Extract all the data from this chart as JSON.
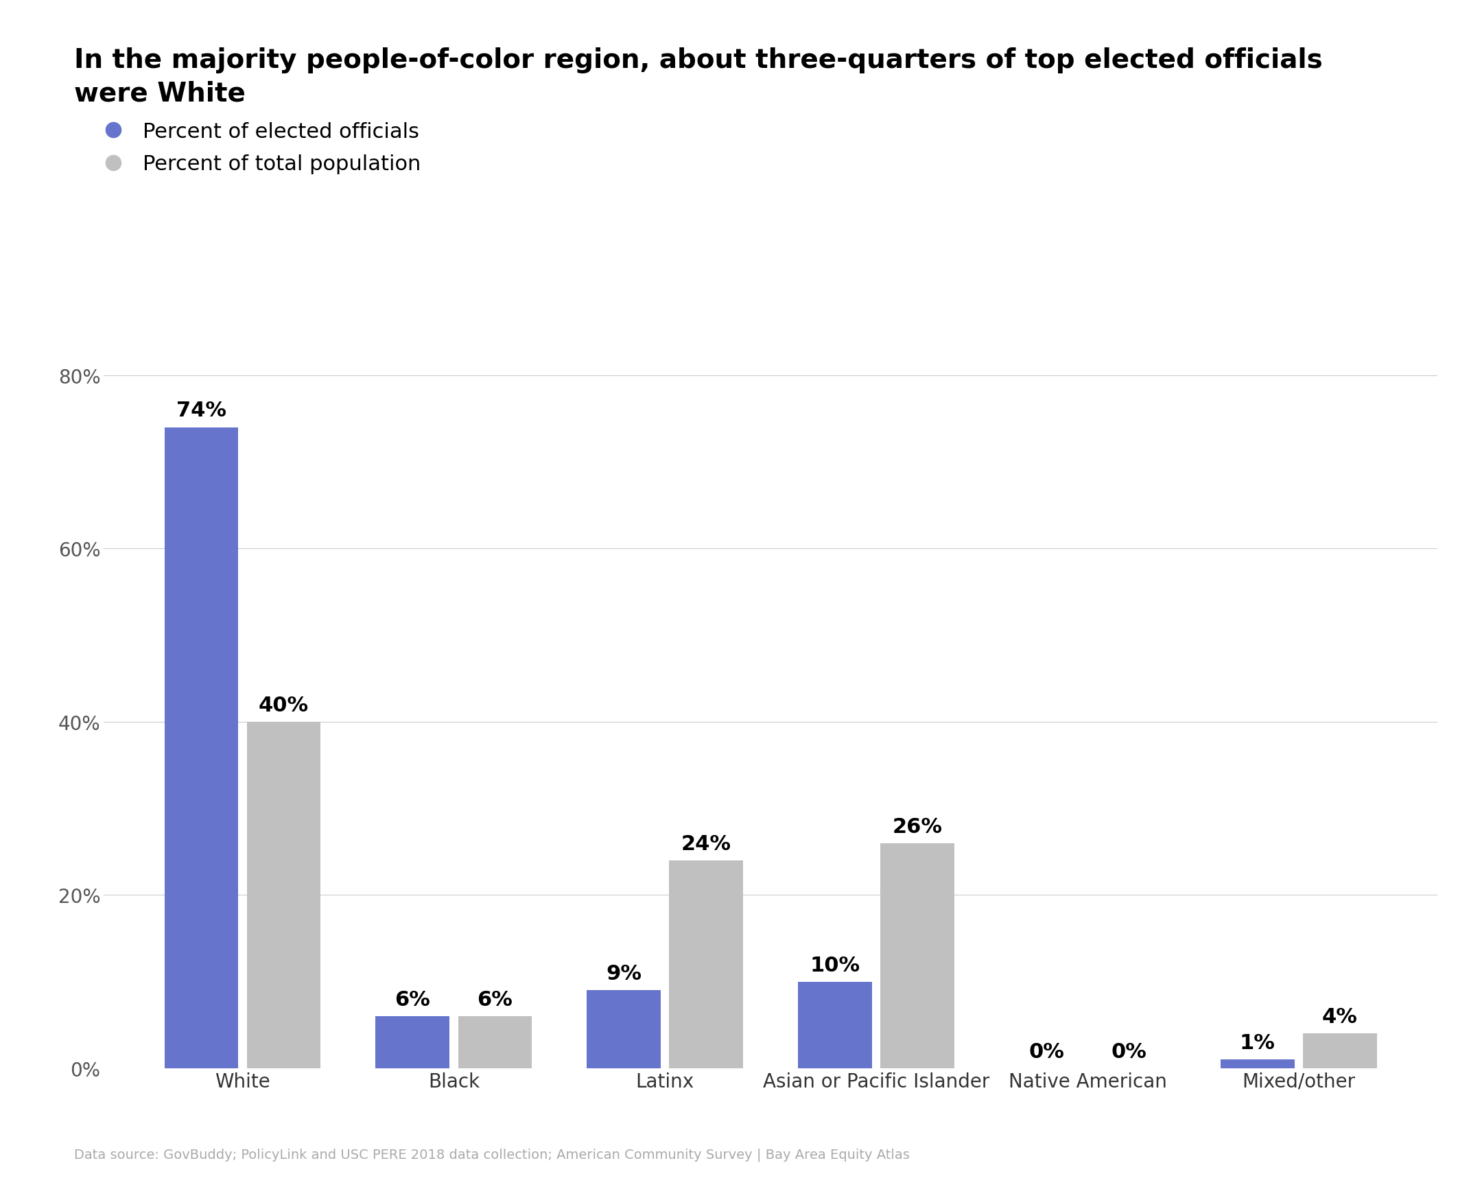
{
  "title_line1": "In the majority people-of-color region, about three-quarters of top elected officials",
  "title_line2": "were White",
  "legend_elected": "Percent of elected officials",
  "legend_population": "Percent of total population",
  "categories": [
    "White",
    "Black",
    "Latinx",
    "Asian or Pacific Islander",
    "Native American",
    "Mixed/other"
  ],
  "elected_values": [
    74,
    6,
    9,
    10,
    0,
    1
  ],
  "population_values": [
    40,
    6,
    24,
    26,
    0,
    4
  ],
  "elected_labels": [
    "74%",
    "6%",
    "9%",
    "10%",
    "0%",
    "1%"
  ],
  "population_labels": [
    "40%",
    "6%",
    "24%",
    "26%",
    "0%",
    "4%"
  ],
  "bar_color_elected": "#6674cc",
  "bar_color_population": "#c0c0c0",
  "background_color": "#ffffff",
  "title_fontsize": 28,
  "label_fontsize": 22,
  "tick_fontsize": 20,
  "legend_fontsize": 22,
  "source_text": "Data source: GovBuddy; PolicyLink and USC PERE 2018 data collection; American Community Survey | Bay Area Equity Atlas",
  "ylim": [
    0,
    85
  ],
  "yticks": [
    0,
    20,
    40,
    60,
    80
  ],
  "ytick_labels": [
    "0%",
    "20%",
    "40%",
    "60%",
    "80%"
  ]
}
